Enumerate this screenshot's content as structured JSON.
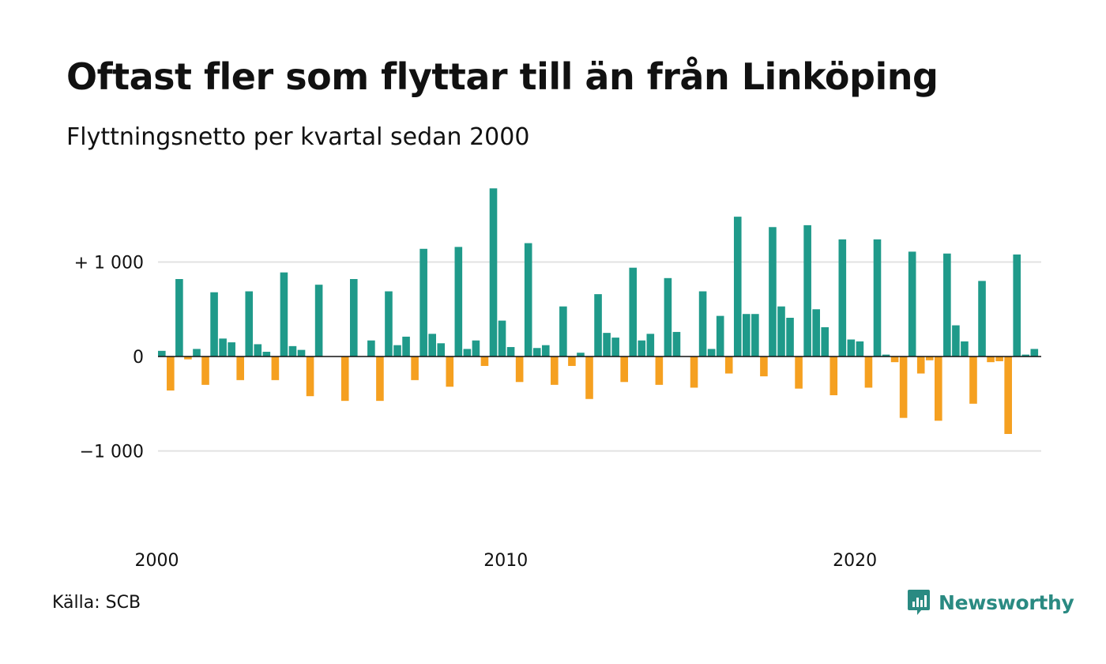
{
  "header": {
    "title": "Oftast fler som flyttar till än från Linköping",
    "subtitle": "Flyttningsnetto per kvartal sedan 2000"
  },
  "footer": {
    "source": "Källa: SCB",
    "brand": "Newsworthy"
  },
  "colors": {
    "positive": "#1f9a8a",
    "negative": "#f5a020",
    "grid": "#e2e2e2",
    "zero_line": "#111111",
    "brand": "#2a8a82"
  },
  "chart_data": {
    "type": "bar",
    "title": "Oftast fler som flyttar till än från Linköping",
    "subtitle": "Flyttningsnetto per kvartal sedan 2000",
    "xlabel": "",
    "ylabel": "",
    "ylim": [
      -1300,
      1800
    ],
    "yticks": [
      {
        "value": 1000,
        "label": "+ 1 000"
      },
      {
        "value": 0,
        "label": "0"
      },
      {
        "value": -1000,
        "label": "−1 000"
      }
    ],
    "xticks": [
      {
        "year": 2000,
        "label": "2000"
      },
      {
        "year": 2010,
        "label": "2010"
      },
      {
        "year": 2020,
        "label": "2020"
      }
    ],
    "start_year": 2000,
    "grid": true,
    "legend": "none",
    "series": [
      {
        "values": [
          60,
          -360,
          820,
          -30,
          80,
          -300,
          680,
          190,
          150,
          -250,
          690,
          130,
          50,
          -250,
          890,
          110,
          70,
          -420,
          760,
          0,
          0,
          -470,
          820,
          0,
          170,
          -470,
          690,
          120,
          210,
          -250,
          1140,
          240,
          140,
          -320,
          1160,
          80,
          170,
          -100,
          1780,
          380,
          100,
          -270,
          1200,
          90,
          120,
          -300,
          530,
          -100,
          40,
          -450,
          660,
          250,
          200,
          -270,
          940,
          170,
          240,
          -300,
          830,
          260,
          0,
          -330,
          690,
          80,
          430,
          -180,
          1480,
          450,
          450,
          -210,
          1370,
          530,
          410,
          -340,
          1390,
          500,
          310,
          -410,
          1240,
          180,
          160,
          -330,
          1240,
          20,
          -60,
          -650,
          1110,
          -180,
          -40,
          -680,
          1090,
          330,
          160,
          -500,
          800,
          -60,
          -50,
          -820,
          1080,
          20,
          80
        ]
      }
    ]
  }
}
